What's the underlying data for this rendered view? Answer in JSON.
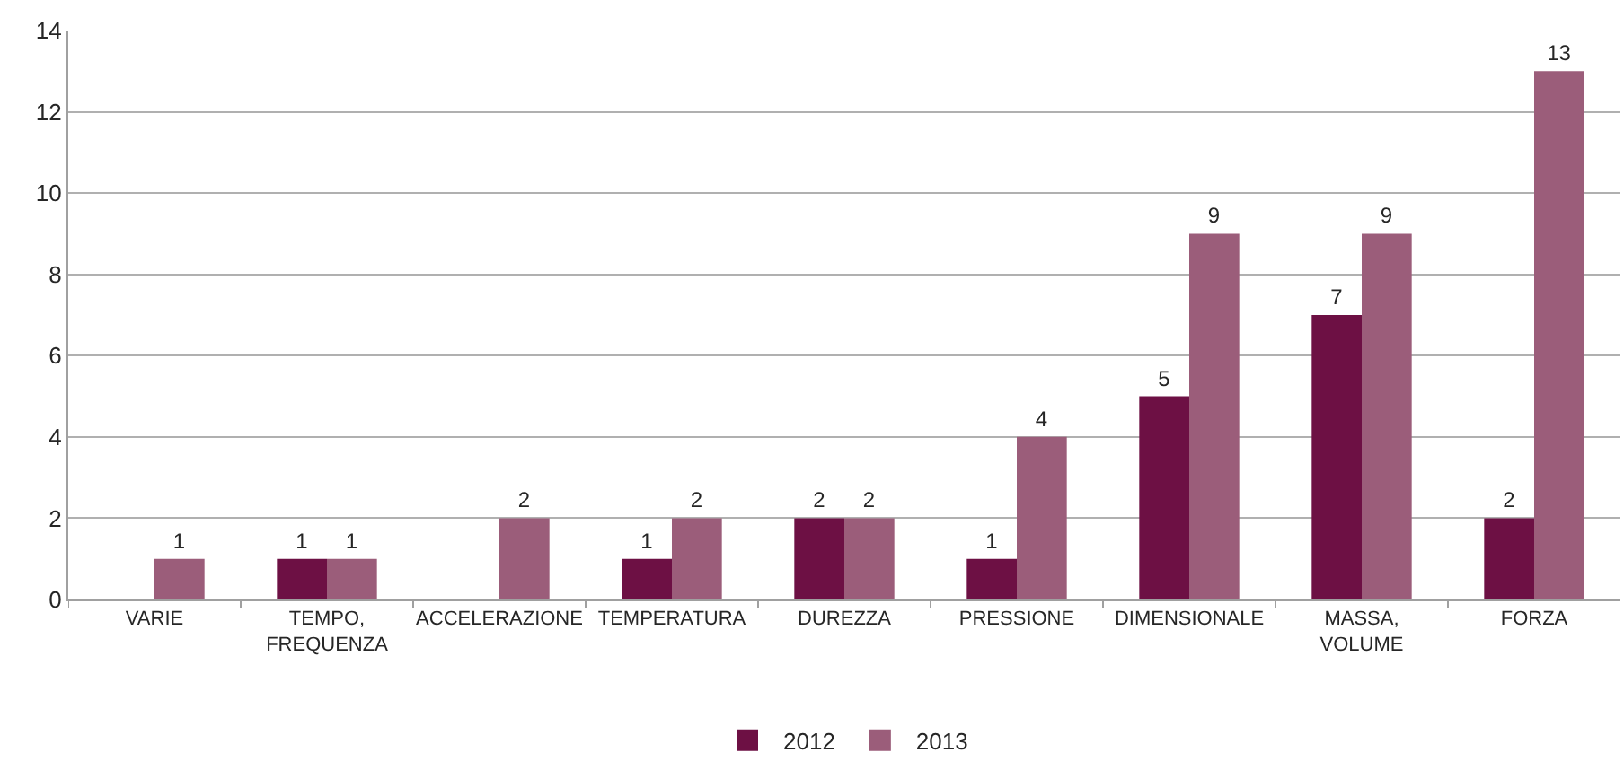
{
  "chart_data": {
    "type": "bar",
    "categories": [
      "VARIE",
      "TEMPO, FREQUENZA",
      "ACCELERAZIONE",
      "TEMPERATURA",
      "DUREZZA",
      "PRESSIONE",
      "DIMENSIONALE",
      "MASSA, VOLUME",
      "FORZA"
    ],
    "series": [
      {
        "name": "2012",
        "color": "#6d1044",
        "values": [
          null,
          1,
          null,
          1,
          2,
          1,
          5,
          7,
          2
        ]
      },
      {
        "name": "2013",
        "color": "#9b5d7a",
        "values": [
          1,
          1,
          2,
          2,
          2,
          4,
          9,
          9,
          13
        ]
      }
    ],
    "ylim": [
      0,
      14
    ],
    "yticks": [
      0,
      2,
      4,
      6,
      8,
      10,
      12,
      14
    ],
    "grid": "y",
    "legend": "bottom",
    "data_labels": true
  }
}
